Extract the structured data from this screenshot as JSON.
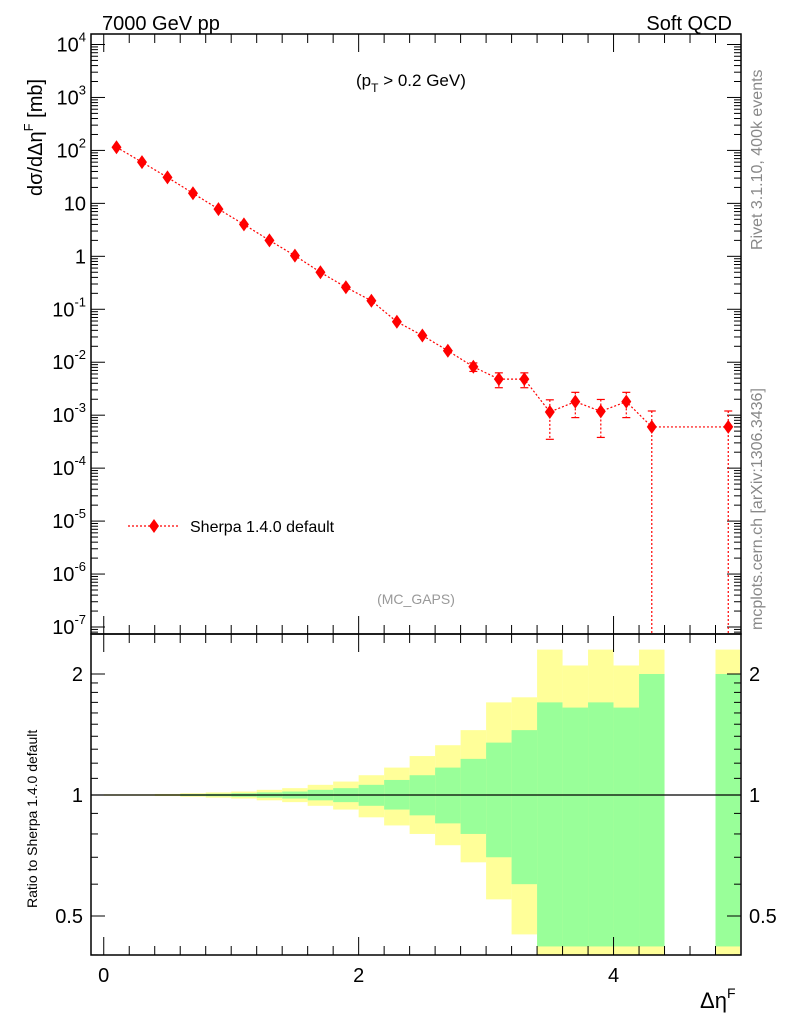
{
  "header": {
    "left": "7000 GeV pp",
    "right": "Soft QCD"
  },
  "side_text": {
    "top": "Rivet 3.1.10,  400k events",
    "bottom": "mcplots.cern.ch [arXiv:1306.3436]"
  },
  "chart_data": {
    "type": "scatter",
    "title": "",
    "annotation": "(p_T > 0.2 GeV)",
    "watermark": "(MC_GAPS)",
    "xlabel": "Δη^F",
    "ylabel": "dσ/dΔη^F [mb]",
    "ratio_ylabel": "Ratio to Sherpa 1.4.0 default",
    "xlim": [
      -0.1,
      5.0
    ],
    "ylim": [
      7e-08,
      20000
    ],
    "ratio_ylim": [
      0.4,
      2.3
    ],
    "x_ticks": [
      "0",
      "2",
      "4"
    ],
    "y_ticks": [
      "10^-7",
      "10^-6",
      "10^-5",
      "10^-4",
      "10^-3",
      "10^-2",
      "10^-1",
      "1",
      "10",
      "10^2",
      "10^3",
      "10^4"
    ],
    "ratio_ticks": [
      "0.5",
      "1",
      "2"
    ],
    "legend": [
      "Sherpa 1.4.0 default"
    ],
    "series": [
      {
        "name": "Sherpa 1.4.0 default",
        "color": "#ff0000",
        "x": [
          0.1,
          0.3,
          0.5,
          0.7,
          0.9,
          1.1,
          1.3,
          1.5,
          1.7,
          1.9,
          2.1,
          2.3,
          2.5,
          2.7,
          2.9,
          3.1,
          3.3,
          3.5,
          3.7,
          3.9,
          4.1,
          4.3,
          4.9
        ],
        "y": [
          115,
          60,
          31,
          15.5,
          7.8,
          4.0,
          2.0,
          1.03,
          0.5,
          0.26,
          0.145,
          0.058,
          0.032,
          0.0165,
          0.0082,
          0.0048,
          0.0048,
          0.00115,
          0.0018,
          0.00118,
          0.0018,
          0.0006,
          0.0006
        ],
        "yerr": [
          0,
          0,
          0,
          0,
          0,
          0,
          0,
          0,
          0,
          0,
          0,
          0,
          0,
          0,
          0.0015,
          0.0015,
          0.0015,
          0.0008,
          0.0009,
          0.0008,
          0.0009,
          0.0006,
          0.0006
        ]
      }
    ],
    "ratio_bands": {
      "edges": [
        0.0,
        0.2,
        0.4,
        0.6,
        0.8,
        1.0,
        1.2,
        1.4,
        1.6,
        1.8,
        2.0,
        2.2,
        2.4,
        2.6,
        2.8,
        3.0,
        3.2,
        3.4,
        3.6,
        3.8,
        4.0,
        4.2,
        4.4,
        4.8,
        5.0
      ],
      "inner_up": [
        1.002,
        1.002,
        1.003,
        1.005,
        1.007,
        1.01,
        1.015,
        1.02,
        1.03,
        1.04,
        1.06,
        1.09,
        1.12,
        1.17,
        1.23,
        1.35,
        1.45,
        1.7,
        1.65,
        1.7,
        1.65,
        2.0,
        null,
        2.0
      ],
      "inner_dn": [
        0.998,
        0.998,
        0.997,
        0.995,
        0.993,
        0.99,
        0.985,
        0.98,
        0.97,
        0.96,
        0.94,
        0.92,
        0.89,
        0.85,
        0.8,
        0.7,
        0.6,
        0.42,
        0.42,
        0.42,
        0.42,
        0.42,
        null,
        0.42
      ],
      "outer_up": [
        1.004,
        1.004,
        1.006,
        1.01,
        1.015,
        1.02,
        1.03,
        1.04,
        1.06,
        1.08,
        1.12,
        1.17,
        1.25,
        1.33,
        1.45,
        1.7,
        1.75,
        2.3,
        2.1,
        2.3,
        2.1,
        2.3,
        null,
        2.3
      ],
      "outer_dn": [
        0.996,
        0.996,
        0.994,
        0.99,
        0.985,
        0.98,
        0.97,
        0.96,
        0.94,
        0.92,
        0.88,
        0.84,
        0.8,
        0.75,
        0.68,
        0.55,
        0.45,
        0.4,
        0.4,
        0.4,
        0.4,
        0.4,
        null,
        0.4
      ]
    }
  }
}
